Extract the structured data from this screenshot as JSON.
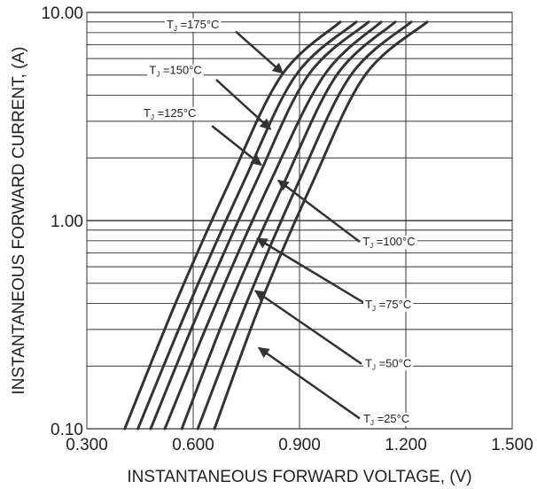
{
  "chart_data": {
    "type": "line",
    "title": "",
    "xlabel": "INSTANTANEOUS FORWARD VOLTAGE, (V)",
    "ylabel": "INSTANTANEOUS FORWARD CURRENT, (A)",
    "xlim": [
      0.3,
      1.5
    ],
    "ylim": [
      0.1,
      10
    ],
    "yscale": "log",
    "grid": true,
    "x_ticks": [
      "0.300",
      "0.600",
      "0.900",
      "1.200",
      "1.500"
    ],
    "y_ticks": [
      "0.10",
      "1.00",
      "10.00"
    ],
    "legend": "none",
    "line_color": "#333333",
    "series": [
      {
        "name": "TJ =175°C",
        "points": [
          [
            0.407,
            0.1
          ],
          [
            0.55,
            0.4
          ],
          [
            0.7,
            1.5
          ],
          [
            0.85,
            5.0
          ],
          [
            1.015,
            9.0
          ]
        ]
      },
      {
        "name": "TJ =150°C",
        "points": [
          [
            0.444,
            0.1
          ],
          [
            0.59,
            0.4
          ],
          [
            0.74,
            1.5
          ],
          [
            0.89,
            5.0
          ],
          [
            1.06,
            9.0
          ]
        ]
      },
      {
        "name": "TJ =125°C",
        "points": [
          [
            0.48,
            0.1
          ],
          [
            0.625,
            0.4
          ],
          [
            0.775,
            1.5
          ],
          [
            0.925,
            5.0
          ],
          [
            1.095,
            9.0
          ]
        ]
      },
      {
        "name": "TJ =100°C",
        "points": [
          [
            0.52,
            0.1
          ],
          [
            0.665,
            0.4
          ],
          [
            0.815,
            1.5
          ],
          [
            0.97,
            5.0
          ],
          [
            1.13,
            9.0
          ]
        ]
      },
      {
        "name": "TJ =75°C",
        "points": [
          [
            0.568,
            0.1
          ],
          [
            0.705,
            0.4
          ],
          [
            0.855,
            1.5
          ],
          [
            1.005,
            5.0
          ],
          [
            1.17,
            9.0
          ]
        ]
      },
      {
        "name": "TJ =50°C",
        "points": [
          [
            0.613,
            0.1
          ],
          [
            0.75,
            0.4
          ],
          [
            0.895,
            1.5
          ],
          [
            1.045,
            5.0
          ],
          [
            1.215,
            9.0
          ]
        ]
      },
      {
        "name": "TJ =25°C",
        "points": [
          [
            0.66,
            0.1
          ],
          [
            0.79,
            0.4
          ],
          [
            0.935,
            1.5
          ],
          [
            1.085,
            5.0
          ],
          [
            1.26,
            9.0
          ]
        ]
      }
    ],
    "annotations": [
      {
        "main": "T",
        "sub": "J",
        "rest": " =175°C",
        "text_x": 0.525,
        "text_y": 8.4,
        "arrow_from": [
          0.72,
          8.1
        ],
        "arrow_to": [
          0.853,
          5.1
        ]
      },
      {
        "main": "T",
        "sub": "J",
        "rest": " =150°C",
        "text_x": 0.476,
        "text_y": 5.05,
        "arrow_from": [
          0.665,
          4.75
        ],
        "arrow_to": [
          0.818,
          2.75
        ]
      },
      {
        "main": "T",
        "sub": "J",
        "rest": " =125°C",
        "text_x": 0.46,
        "text_y": 3.15,
        "arrow_from": [
          0.653,
          2.85
        ],
        "arrow_to": [
          0.792,
          1.85
        ]
      },
      {
        "main": "T",
        "sub": "J",
        "rest": " =100°C",
        "text_x": 1.078,
        "text_y": 0.76,
        "arrow_from": [
          1.07,
          0.79
        ],
        "arrow_to": [
          0.84,
          1.56
        ]
      },
      {
        "main": "T",
        "sub": "J",
        "rest": " =75°C",
        "text_x": 1.085,
        "text_y": 0.38,
        "arrow_from": [
          1.085,
          0.4
        ],
        "arrow_to": [
          0.78,
          0.82
        ]
      },
      {
        "main": "T",
        "sub": "J",
        "rest": " =50°C",
        "text_x": 1.085,
        "text_y": 0.198,
        "arrow_from": [
          1.075,
          0.205
        ],
        "arrow_to": [
          0.775,
          0.46
        ]
      },
      {
        "main": "T",
        "sub": "J",
        "rest": " =25°C",
        "text_x": 1.08,
        "text_y": 0.107,
        "arrow_from": [
          1.07,
          0.112
        ],
        "arrow_to": [
          0.785,
          0.245
        ]
      }
    ]
  }
}
